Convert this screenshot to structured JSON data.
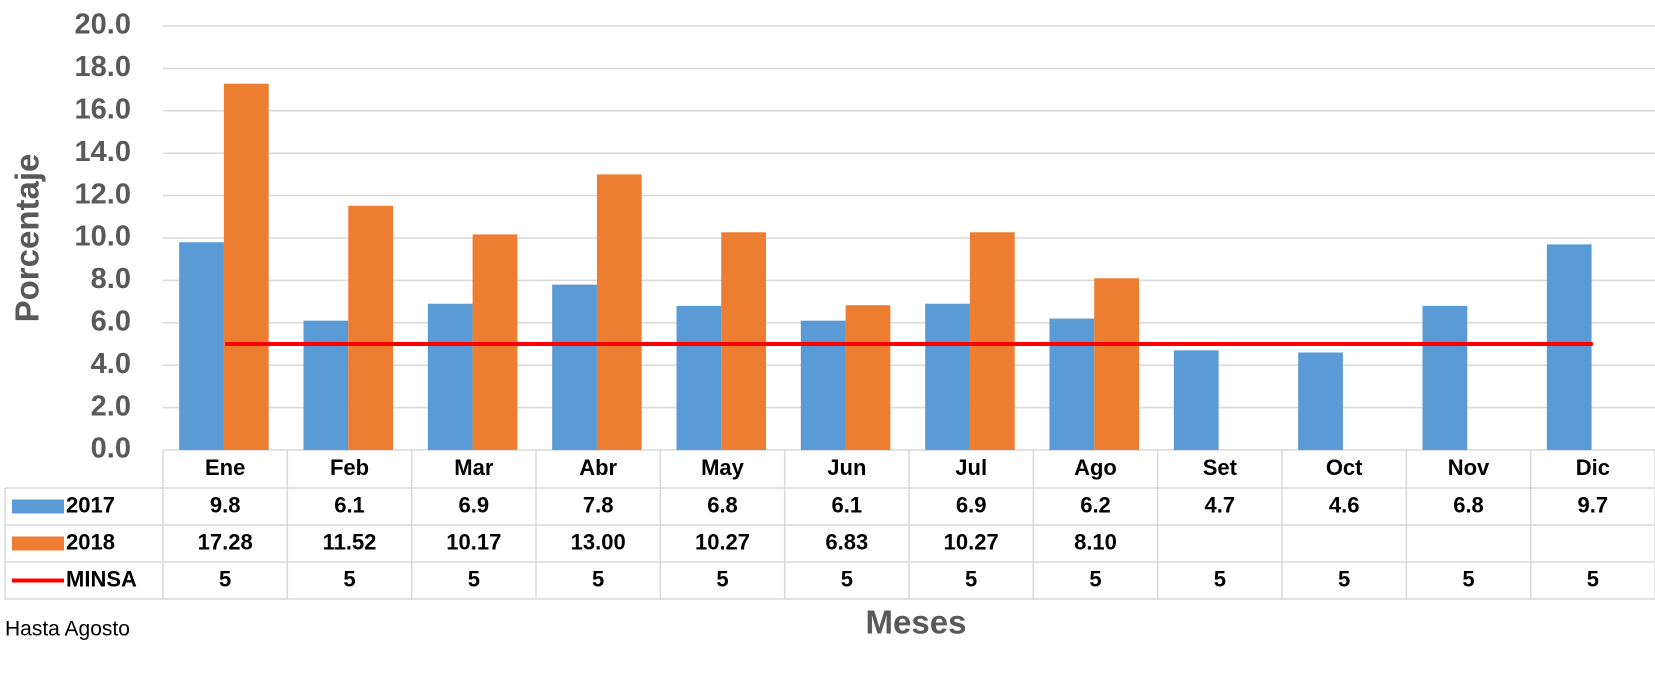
{
  "chart_data": {
    "type": "bar",
    "y_title": "Porcentaje",
    "x_title": "Meses",
    "note": "Hasta Agosto",
    "categories": [
      "Ene",
      "Feb",
      "Mar",
      "Abr",
      "May",
      "Jun",
      "Jul",
      "Ago",
      "Set",
      "Oct",
      "Nov",
      "Dic"
    ],
    "series": [
      {
        "name": "2017",
        "type": "bar",
        "color": "#5b9bd5",
        "values": [
          9.8,
          6.1,
          6.9,
          7.8,
          6.8,
          6.1,
          6.9,
          6.2,
          4.7,
          4.6,
          6.8,
          9.7
        ]
      },
      {
        "name": "2018",
        "type": "bar",
        "color": "#ed7d31",
        "values": [
          17.28,
          11.52,
          10.17,
          13.0,
          10.27,
          6.83,
          10.27,
          8.1,
          null,
          null,
          null,
          null
        ],
        "value_labels": [
          "17.28",
          "11.52",
          "10.17",
          "13.00",
          "10.27",
          "6.83",
          "10.27",
          "8.10",
          null,
          null,
          null,
          null
        ]
      },
      {
        "name": "MINSA",
        "type": "line",
        "color": "#ff0000",
        "values": [
          5,
          5,
          5,
          5,
          5,
          5,
          5,
          5,
          5,
          5,
          5,
          5
        ]
      }
    ],
    "ylim": [
      0,
      20
    ],
    "yticks": [
      {
        "value": 0,
        "label": "0.0"
      },
      {
        "value": 2,
        "label": "2.0"
      },
      {
        "value": 4,
        "label": "4.0"
      },
      {
        "value": 6,
        "label": "6.0"
      },
      {
        "value": 8,
        "label": "8.0"
      },
      {
        "value": 10,
        "label": "10.0"
      },
      {
        "value": 12,
        "label": "12.0"
      },
      {
        "value": 14,
        "label": "14.0"
      },
      {
        "value": 16,
        "label": "16.0"
      },
      {
        "value": 18,
        "label": "18.0"
      },
      {
        "value": 20,
        "label": "20.0"
      }
    ],
    "grid": true
  }
}
